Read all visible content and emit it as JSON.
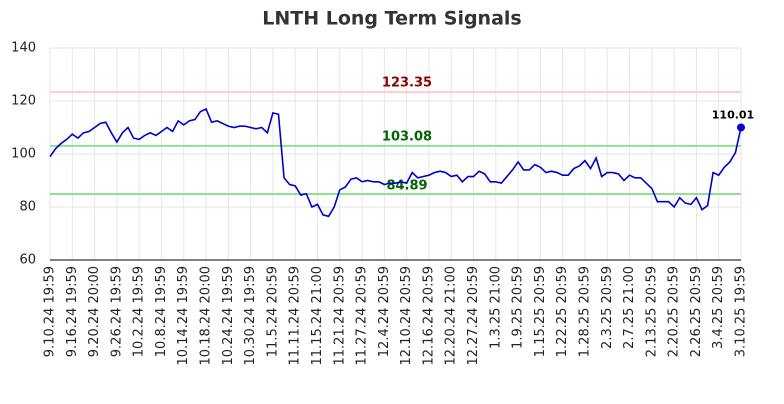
{
  "chart_data": {
    "type": "line",
    "title": "LNTH Long Term Signals",
    "categories": [
      "9.10.24 19:59",
      null,
      null,
      null,
      "9.16.24 19:59",
      null,
      null,
      null,
      "9.20.24 20:00",
      null,
      null,
      null,
      "9.26.24 19:59",
      null,
      null,
      null,
      "10.2.24 19:59",
      null,
      null,
      null,
      "10.8.24 19:59",
      null,
      null,
      null,
      "10.14.24 19:59",
      null,
      null,
      null,
      "10.18.24 20:00",
      null,
      null,
      null,
      "10.24.24 19:59",
      null,
      null,
      null,
      "10.30.24 19:59",
      null,
      null,
      null,
      "11.5.24 20:59",
      null,
      null,
      null,
      "11.11.24 20:59",
      null,
      null,
      null,
      "11.15.24 21:00",
      null,
      null,
      null,
      "11.21.24 20:59",
      null,
      null,
      null,
      "11.27.24 20:59",
      null,
      null,
      null,
      "12.4.24 20:59",
      null,
      null,
      null,
      "12.10.24 20:59",
      null,
      null,
      null,
      "12.16.24 20:59",
      null,
      null,
      null,
      "12.20.24 21:00",
      null,
      null,
      null,
      "12.27.24 20:59",
      null,
      null,
      null,
      "1.3.25 21:00",
      null,
      null,
      null,
      "1.9.25 20:59",
      null,
      null,
      null,
      "1.15.25 20:59",
      null,
      null,
      null,
      "1.22.25 20:59",
      null,
      null,
      null,
      "1.28.25 20:59",
      null,
      null,
      null,
      "2.3.25 20:59",
      null,
      null,
      null,
      "2.7.25 21:00",
      null,
      null,
      null,
      "2.13.25 20:59",
      null,
      null,
      null,
      "2.20.25 20:59",
      null,
      null,
      null,
      "2.26.25 20:59",
      null,
      null,
      null,
      "3.4.25 20:59",
      null,
      null,
      null,
      "3.10.25 19:59"
    ],
    "series": [
      {
        "color": "#0000cc",
        "values": [
          99,
          102,
          104,
          105.5,
          107.5,
          106,
          108,
          108.5,
          110,
          111.5,
          112,
          108,
          104.5,
          108,
          110,
          106,
          105.5,
          107,
          108,
          107,
          108.5,
          110,
          108.5,
          112.5,
          111,
          112.5,
          113,
          116,
          117,
          112,
          112.5,
          111.5,
          110.5,
          110,
          110.5,
          110.5,
          110,
          109.5,
          110,
          108,
          115.5,
          115,
          91,
          88.5,
          88,
          84.5,
          85,
          80,
          81,
          77,
          76.5,
          80,
          86.5,
          87.5,
          90.5,
          91,
          89.5,
          90,
          89.5,
          89.5,
          88.5,
          89,
          89,
          89.5,
          89,
          93,
          91,
          91.5,
          92,
          93,
          93.5,
          93,
          91.5,
          92,
          89.5,
          91.5,
          91.5,
          93.5,
          92.5,
          89.5,
          89.5,
          89,
          91.5,
          94,
          97,
          94,
          94,
          96,
          95,
          93,
          93.5,
          93,
          92,
          92,
          94.5,
          95.5,
          97.5,
          94.5,
          98.5,
          91.5,
          93,
          93,
          92.5,
          90,
          92,
          91,
          91,
          89,
          87,
          82,
          82,
          82,
          80,
          83.5,
          81.5,
          81,
          83.5,
          79,
          80.5,
          93,
          92,
          95,
          97,
          100.5,
          110.01
        ]
      }
    ],
    "hlines": [
      {
        "value": 123.35,
        "color": "#ffcccc",
        "label_color": "#8b0000"
      },
      {
        "value": 103.08,
        "color": "#90e090",
        "label_color": "#006400"
      },
      {
        "value": 84.89,
        "color": "#90e090",
        "label_color": "#006400"
      }
    ],
    "ylim": [
      60,
      140
    ],
    "yticks": [
      60,
      80,
      100,
      120,
      140
    ],
    "grid": true
  }
}
